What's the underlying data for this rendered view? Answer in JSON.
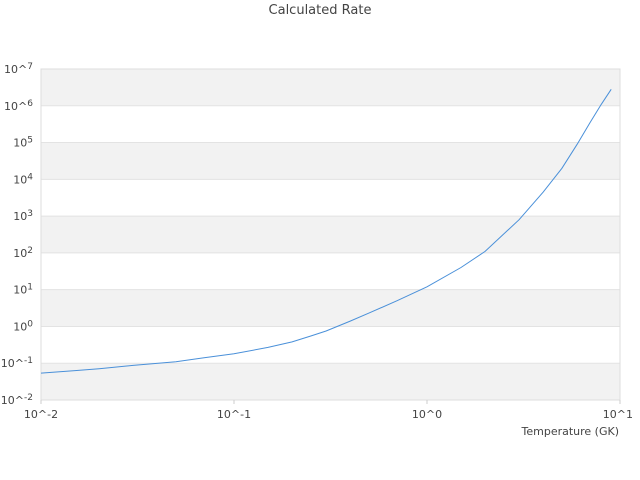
{
  "chart_data": {
    "type": "line",
    "title": "Calculated Rate",
    "xlabel": "Temperature (GK)",
    "ylabel": "",
    "x_scale": "log",
    "y_scale": "log",
    "xlim": [
      0.01,
      10
    ],
    "ylim": [
      0.01,
      10000000
    ],
    "grid": "alternating horizontal bands",
    "legend": "none",
    "x_ticks": [
      {
        "value": 0.01,
        "label": "10^-2"
      },
      {
        "value": 0.1,
        "label": "10^-1"
      },
      {
        "value": 1,
        "label": "10^0"
      },
      {
        "value": 10,
        "label": "10^1"
      }
    ],
    "y_ticks": [
      {
        "value": 0.01,
        "base": "10^",
        "exp": "-2"
      },
      {
        "value": 0.1,
        "base": "10^",
        "exp": "-1"
      },
      {
        "value": 1,
        "base": "10",
        "exp": "0"
      },
      {
        "value": 10,
        "base": "10",
        "exp": "1"
      },
      {
        "value": 100,
        "base": "10",
        "exp": "2"
      },
      {
        "value": 1000,
        "base": "10",
        "exp": "3"
      },
      {
        "value": 10000,
        "base": "10",
        "exp": "4"
      },
      {
        "value": 100000,
        "base": "10",
        "exp": "5"
      },
      {
        "value": 1000000,
        "base": "10^",
        "exp": "6"
      },
      {
        "value": 10000000,
        "base": "10^",
        "exp": "7"
      }
    ],
    "series": [
      {
        "color": "#4a90d9",
        "points": [
          [
            0.01,
            0.054
          ],
          [
            0.015,
            0.063
          ],
          [
            0.02,
            0.071
          ],
          [
            0.03,
            0.087
          ],
          [
            0.05,
            0.11
          ],
          [
            0.07,
            0.14
          ],
          [
            0.1,
            0.18
          ],
          [
            0.15,
            0.27
          ],
          [
            0.2,
            0.38
          ],
          [
            0.25,
            0.55
          ],
          [
            0.3,
            0.75
          ],
          [
            0.4,
            1.4
          ],
          [
            0.5,
            2.3
          ],
          [
            0.7,
            5.0
          ],
          [
            1.0,
            12
          ],
          [
            1.5,
            40
          ],
          [
            2.0,
            110
          ],
          [
            3.0,
            800
          ],
          [
            4.0,
            4500
          ],
          [
            5.0,
            20000
          ],
          [
            6.0,
            90000
          ],
          [
            7.0,
            350000
          ],
          [
            8.0,
            1100000
          ],
          [
            9.0,
            2800000
          ]
        ]
      }
    ]
  }
}
